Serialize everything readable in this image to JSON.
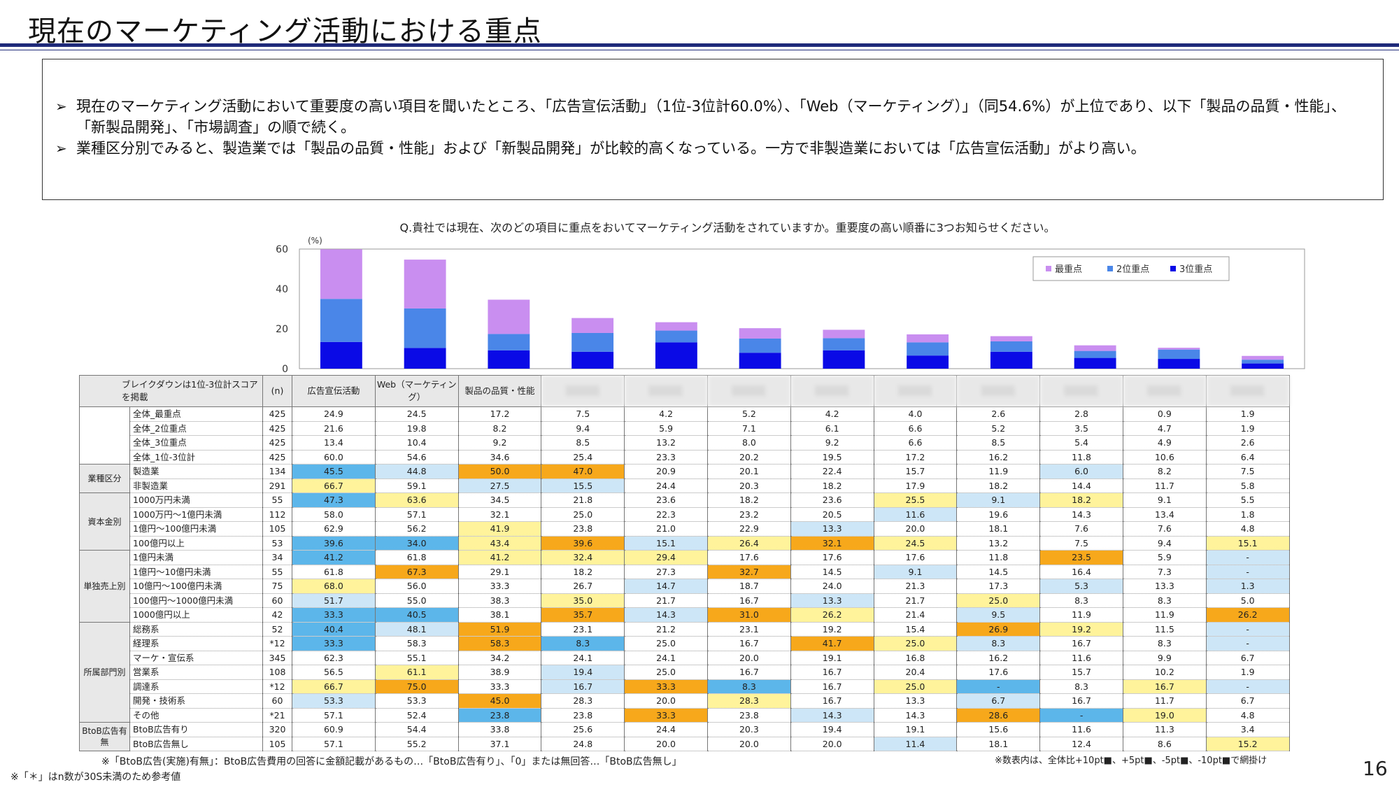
{
  "page": {
    "title": "現在のマーケティング活動における重点",
    "page_number": "16"
  },
  "summary": {
    "bullet_mark": "➢",
    "bullets": [
      "現在のマーケティング活動において重要度の高い項目を聞いたところ、「広告宣伝活動」（1位-3位計60.0%）、「Web（マーケティング）」（同54.6%）が上位であり、以下「製品の品質・性能」、「新製品開発」、「市場調査」の順で続く。",
      "業種区分別でみると、製造業では「製品の品質・性能」および「新製品開発」が比較的高くなっている。一方で非製造業においては「広告宣伝活動」がより高い。"
    ]
  },
  "question": "Q.貴社では現在、次のどの項目に重点をおいてマーケティング活動をされていますか。重要度の高い順番に3つお知らせください。",
  "colors": {
    "first": "#c98ef0",
    "second": "#4a86e8",
    "third": "#0a0ae6",
    "over10": "#f7a81b",
    "over5": "#fff39b",
    "under5": "#cde6f7",
    "under10": "#5cb6ea"
  },
  "chart_data": {
    "type": "bar",
    "stacked": true,
    "unit_label": "(%)",
    "ylim": [
      0,
      60
    ],
    "yticks": [
      "0",
      "20",
      "40",
      "60"
    ],
    "categories": [
      "広告宣伝活動",
      "Web（マーケティング）",
      "製品の品質・性能",
      "",
      "",
      "",
      "",
      "",
      "",
      "",
      "",
      ""
    ],
    "series": [
      {
        "name": "3位重点",
        "values": [
          13.4,
          10.4,
          9.2,
          8.5,
          13.2,
          8.0,
          9.2,
          6.6,
          8.5,
          5.4,
          4.9,
          2.6
        ]
      },
      {
        "name": "2位重点",
        "values": [
          21.6,
          19.8,
          8.2,
          9.4,
          5.9,
          7.1,
          6.1,
          6.6,
          5.2,
          3.5,
          4.7,
          1.9
        ]
      },
      {
        "name": "最重点",
        "values": [
          24.9,
          24.5,
          17.2,
          7.5,
          4.2,
          5.2,
          4.2,
          4.0,
          2.6,
          2.8,
          0.9,
          1.9
        ]
      }
    ],
    "legend": [
      "最重点",
      "2位重点",
      "3位重点"
    ],
    "legend_position": "top-right",
    "grid": false
  },
  "table": {
    "corner_label": "ブレイクダウンは1位-3位計スコアを掲載",
    "n_label": "(n)",
    "col_headers": [
      "広告宣伝活動",
      "Web（マーケティング）",
      "製品の品質・性能",
      "",
      "",
      "",
      "",
      "",
      "",
      "",
      "",
      ""
    ],
    "groups": [
      {
        "label": "",
        "rows": [
          {
            "label": "全体_最重点",
            "n": "425",
            "values": [
              "24.9",
              "24.5",
              "17.2",
              "7.5",
              "4.2",
              "5.2",
              "4.2",
              "4.0",
              "2.6",
              "2.8",
              "0.9",
              "1.9"
            ],
            "hl": [
              "",
              "",
              "",
              "",
              "",
              "",
              "",
              "",
              "",
              "",
              "",
              ""
            ]
          },
          {
            "label": "全体_2位重点",
            "n": "425",
            "values": [
              "21.6",
              "19.8",
              "8.2",
              "9.4",
              "5.9",
              "7.1",
              "6.1",
              "6.6",
              "5.2",
              "3.5",
              "4.7",
              "1.9"
            ],
            "hl": [
              "",
              "",
              "",
              "",
              "",
              "",
              "",
              "",
              "",
              "",
              "",
              ""
            ]
          },
          {
            "label": "全体_3位重点",
            "n": "425",
            "values": [
              "13.4",
              "10.4",
              "9.2",
              "8.5",
              "13.2",
              "8.0",
              "9.2",
              "6.6",
              "8.5",
              "5.4",
              "4.9",
              "2.6"
            ],
            "hl": [
              "",
              "",
              "",
              "",
              "",
              "",
              "",
              "",
              "",
              "",
              "",
              ""
            ]
          },
          {
            "label": "全体_1位-3位計",
            "n": "425",
            "values": [
              "60.0",
              "54.6",
              "34.6",
              "25.4",
              "23.3",
              "20.2",
              "19.5",
              "17.2",
              "16.2",
              "11.8",
              "10.6",
              "6.4"
            ],
            "hl": [
              "",
              "",
              "",
              "",
              "",
              "",
              "",
              "",
              "",
              "",
              "",
              ""
            ]
          }
        ]
      },
      {
        "label": "業種区分",
        "rows": [
          {
            "label": "製造業",
            "n": "134",
            "values": [
              "45.5",
              "44.8",
              "50.0",
              "47.0",
              "20.9",
              "20.1",
              "22.4",
              "15.7",
              "11.9",
              "6.0",
              "8.2",
              "7.5"
            ],
            "hl": [
              "c4",
              "c3",
              "c1",
              "c1",
              "",
              "",
              "",
              "",
              "",
              "c3",
              "",
              ""
            ]
          },
          {
            "label": "非製造業",
            "n": "291",
            "values": [
              "66.7",
              "59.1",
              "27.5",
              "15.5",
              "24.4",
              "20.3",
              "18.2",
              "17.9",
              "18.2",
              "14.4",
              "11.7",
              "5.8"
            ],
            "hl": [
              "c2",
              "",
              "c3",
              "c3",
              "",
              "",
              "",
              "",
              "",
              "",
              "",
              ""
            ]
          }
        ]
      },
      {
        "label": "資本金別",
        "rows": [
          {
            "label": "1000万円未満",
            "n": "55",
            "values": [
              "47.3",
              "63.6",
              "34.5",
              "21.8",
              "23.6",
              "18.2",
              "23.6",
              "25.5",
              "9.1",
              "18.2",
              "9.1",
              "5.5"
            ],
            "hl": [
              "c4",
              "c2",
              "",
              "",
              "",
              "",
              "",
              "c2",
              "c3",
              "c2",
              "",
              ""
            ]
          },
          {
            "label": "1000万円～1億円未満",
            "n": "112",
            "values": [
              "58.0",
              "57.1",
              "32.1",
              "25.0",
              "22.3",
              "23.2",
              "20.5",
              "11.6",
              "19.6",
              "14.3",
              "13.4",
              "1.8"
            ],
            "hl": [
              "",
              "",
              "",
              "",
              "",
              "",
              "",
              "c3",
              "",
              "",
              "",
              ""
            ]
          },
          {
            "label": "1億円～100億円未満",
            "n": "105",
            "values": [
              "62.9",
              "56.2",
              "41.9",
              "23.8",
              "21.0",
              "22.9",
              "13.3",
              "20.0",
              "18.1",
              "7.6",
              "7.6",
              "4.8"
            ],
            "hl": [
              "",
              "",
              "c2",
              "",
              "",
              "",
              "c3",
              "",
              "",
              "",
              "",
              ""
            ]
          },
          {
            "label": "100億円以上",
            "n": "53",
            "values": [
              "39.6",
              "34.0",
              "43.4",
              "39.6",
              "15.1",
              "26.4",
              "32.1",
              "24.5",
              "13.2",
              "7.5",
              "9.4",
              "15.1"
            ],
            "hl": [
              "c4",
              "c4",
              "c2",
              "c1",
              "c3",
              "c2",
              "c1",
              "c2",
              "",
              "",
              "",
              "c2"
            ]
          }
        ]
      },
      {
        "label": "単独売上別",
        "rows": [
          {
            "label": "1億円未満",
            "n": "34",
            "values": [
              "41.2",
              "61.8",
              "41.2",
              "32.4",
              "29.4",
              "17.6",
              "17.6",
              "17.6",
              "11.8",
              "23.5",
              "5.9",
              "-"
            ],
            "hl": [
              "c4",
              "",
              "c2",
              "c2",
              "c2",
              "",
              "",
              "",
              "",
              "c1",
              "",
              "c3"
            ]
          },
          {
            "label": "1億円～10億円未満",
            "n": "55",
            "values": [
              "61.8",
              "67.3",
              "29.1",
              "18.2",
              "27.3",
              "32.7",
              "14.5",
              "9.1",
              "14.5",
              "16.4",
              "7.3",
              "-"
            ],
            "hl": [
              "",
              "c1",
              "",
              "",
              "",
              "c1",
              "",
              "c3",
              "",
              "",
              "",
              "c3"
            ]
          },
          {
            "label": "10億円～100億円未満",
            "n": "75",
            "values": [
              "68.0",
              "56.0",
              "33.3",
              "26.7",
              "14.7",
              "18.7",
              "24.0",
              "21.3",
              "17.3",
              "5.3",
              "13.3",
              "1.3"
            ],
            "hl": [
              "c2",
              "",
              "",
              "",
              "c3",
              "",
              "",
              "",
              "",
              "c3",
              "",
              "c3"
            ]
          },
          {
            "label": "100億円～1000億円未満",
            "n": "60",
            "values": [
              "51.7",
              "55.0",
              "38.3",
              "35.0",
              "21.7",
              "16.7",
              "13.3",
              "21.7",
              "25.0",
              "8.3",
              "8.3",
              "5.0"
            ],
            "hl": [
              "c3",
              "",
              "",
              "c2",
              "",
              "",
              "c3",
              "",
              "c2",
              "",
              "",
              ""
            ]
          },
          {
            "label": "1000億円以上",
            "n": "42",
            "values": [
              "33.3",
              "40.5",
              "38.1",
              "35.7",
              "14.3",
              "31.0",
              "26.2",
              "21.4",
              "9.5",
              "11.9",
              "11.9",
              "26.2"
            ],
            "hl": [
              "c4",
              "c4",
              "",
              "c1",
              "c3",
              "c1",
              "c2",
              "",
              "c3",
              "",
              "",
              "c1"
            ]
          }
        ]
      },
      {
        "label": "所属部門別",
        "rows": [
          {
            "label": "総務系",
            "n": "52",
            "values": [
              "40.4",
              "48.1",
              "51.9",
              "23.1",
              "21.2",
              "23.1",
              "19.2",
              "15.4",
              "26.9",
              "19.2",
              "11.5",
              "-"
            ],
            "hl": [
              "c4",
              "c3",
              "c1",
              "",
              "",
              "",
              "",
              "",
              "c1",
              "c2",
              "",
              "c3"
            ]
          },
          {
            "label": "経理系",
            "n": "*12",
            "values": [
              "33.3",
              "58.3",
              "58.3",
              "8.3",
              "25.0",
              "16.7",
              "41.7",
              "25.0",
              "8.3",
              "16.7",
              "8.3",
              "-"
            ],
            "hl": [
              "c4",
              "",
              "c1",
              "c4",
              "",
              "",
              "c1",
              "c2",
              "c3",
              "",
              "",
              "c3"
            ]
          },
          {
            "label": "マーケ・宣伝系",
            "n": "345",
            "values": [
              "62.3",
              "55.1",
              "34.2",
              "24.1",
              "24.1",
              "20.0",
              "19.1",
              "16.8",
              "16.2",
              "11.6",
              "9.9",
              "6.7"
            ],
            "hl": [
              "",
              "",
              "",
              "",
              "",
              "",
              "",
              "",
              "",
              "",
              "",
              ""
            ]
          },
          {
            "label": "営業系",
            "n": "108",
            "values": [
              "56.5",
              "61.1",
              "38.9",
              "19.4",
              "25.0",
              "16.7",
              "16.7",
              "20.4",
              "17.6",
              "15.7",
              "10.2",
              "1.9"
            ],
            "hl": [
              "",
              "c2",
              "",
              "c3",
              "",
              "",
              "",
              "",
              "",
              "",
              "",
              ""
            ]
          },
          {
            "label": "調達系",
            "n": "*12",
            "values": [
              "66.7",
              "75.0",
              "33.3",
              "16.7",
              "33.3",
              "8.3",
              "16.7",
              "25.0",
              "-",
              "8.3",
              "16.7",
              "-"
            ],
            "hl": [
              "c2",
              "c1",
              "",
              "c3",
              "c1",
              "c4",
              "",
              "c2",
              "c4",
              "",
              "c2",
              "c3"
            ]
          },
          {
            "label": "開発・技術系",
            "n": "60",
            "values": [
              "53.3",
              "53.3",
              "45.0",
              "28.3",
              "20.0",
              "28.3",
              "16.7",
              "13.3",
              "6.7",
              "16.7",
              "11.7",
              "6.7"
            ],
            "hl": [
              "c3",
              "",
              "c1",
              "",
              "",
              "c2",
              "",
              "",
              "c3",
              "",
              "",
              ""
            ]
          },
          {
            "label": "その他",
            "n": "*21",
            "values": [
              "57.1",
              "52.4",
              "23.8",
              "23.8",
              "33.3",
              "23.8",
              "14.3",
              "14.3",
              "28.6",
              "-",
              "19.0",
              "4.8"
            ],
            "hl": [
              "",
              "",
              "c4",
              "",
              "c1",
              "",
              "c3",
              "",
              "c1",
              "c4",
              "c2",
              ""
            ]
          }
        ]
      },
      {
        "label": "BtoB広告有無",
        "rows": [
          {
            "label": "BtoB広告有り",
            "n": "320",
            "values": [
              "60.9",
              "54.4",
              "33.8",
              "25.6",
              "24.4",
              "20.3",
              "19.4",
              "19.1",
              "15.6",
              "11.6",
              "11.3",
              "3.4"
            ],
            "hl": [
              "",
              "",
              "",
              "",
              "",
              "",
              "",
              "",
              "",
              "",
              "",
              ""
            ]
          },
          {
            "label": "BtoB広告無し",
            "n": "105",
            "values": [
              "57.1",
              "55.2",
              "37.1",
              "24.8",
              "20.0",
              "20.0",
              "20.0",
              "11.4",
              "18.1",
              "12.4",
              "8.6",
              "15.2"
            ],
            "hl": [
              "",
              "",
              "",
              "",
              "",
              "",
              "",
              "c3",
              "",
              "",
              "",
              "c2"
            ]
          }
        ]
      }
    ]
  },
  "footnotes": {
    "btob_note": "※「BtoB広告(実施)有無」：BtoB広告費用の回答に金額記載があるもの…「BtoB広告有り」、「0」または無回答…「BtoB広告無し」",
    "asterisk_note": "※「＊」はn数が30S未満のため参考値",
    "highlight_note": "※数表内は、全体比+10pt■、+5pt■、-5pt■、-10pt■で網掛け"
  }
}
